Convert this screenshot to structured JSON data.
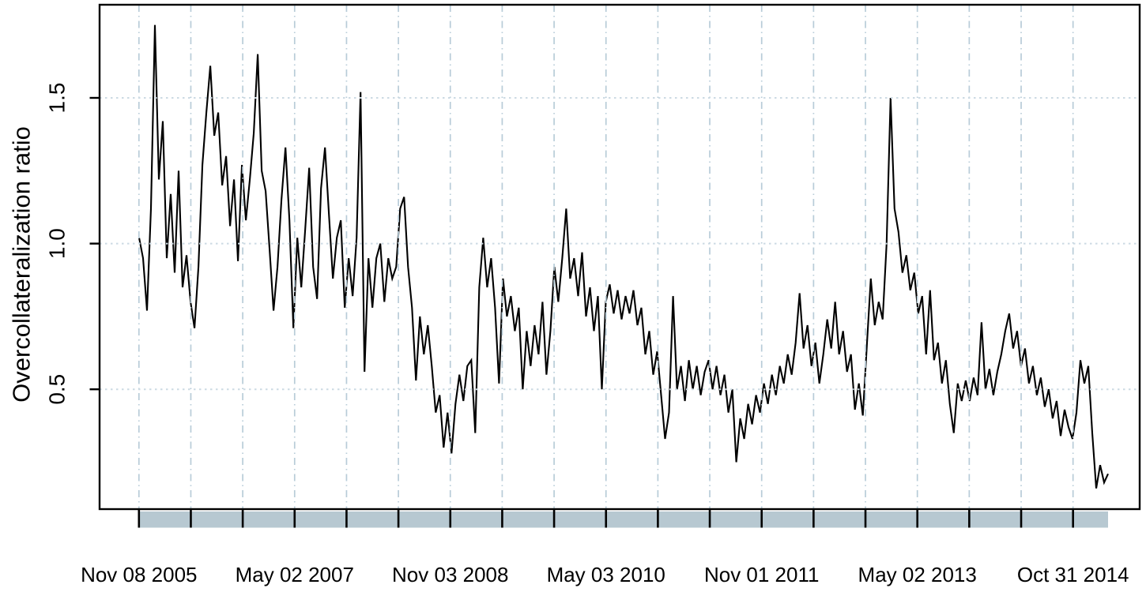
{
  "figure": {
    "kind": "r-plot-screenshot",
    "background": "#ffffff"
  },
  "chart_data": {
    "type": "line",
    "title": "",
    "xlabel": "",
    "ylabel": "Overcollateralization ratio",
    "series_name": "Overcollateralization ratio",
    "x_start_date": "2005-11-08",
    "x_end_date": "2015-03-07",
    "interval_days": 13.9,
    "ylim": [
      0.09,
      1.82
    ],
    "y_ticks": [
      0.5,
      1.0,
      1.5
    ],
    "y_tick_labels": [
      "0.5",
      "1.0",
      "1.5"
    ],
    "x_tick_labels": [
      "Nov 08 2005",
      "May 02 2007",
      "Nov 03 2008",
      "May 03 2010",
      "Nov 01 2011",
      "May 02 2013",
      "Oct 31 2014"
    ],
    "labeled_tick_indices": [
      0,
      3,
      6,
      9,
      12,
      15,
      18
    ],
    "n_x_ticks": 19,
    "x_minor_tick_every_months": 6,
    "grid": true,
    "legend_position": "none",
    "colors": {
      "line": "#000000",
      "v_grid": "#b8ccd8",
      "h_grid": "#ccdae3",
      "axis_band": "#b7c8d1",
      "border": "#000000",
      "text": "#000000",
      "background": "#ffffff"
    },
    "values": [
      1.02,
      0.95,
      0.77,
      1.12,
      1.75,
      1.22,
      1.42,
      0.95,
      1.17,
      0.9,
      1.25,
      0.85,
      0.96,
      0.8,
      0.71,
      0.92,
      1.27,
      1.45,
      1.61,
      1.37,
      1.45,
      1.2,
      1.3,
      1.06,
      1.22,
      0.94,
      1.27,
      1.08,
      1.22,
      1.38,
      1.65,
      1.25,
      1.18,
      0.98,
      0.77,
      0.92,
      1.15,
      1.33,
      1.08,
      0.71,
      1.02,
      0.85,
      1.05,
      1.26,
      0.92,
      0.81,
      1.19,
      1.33,
      1.1,
      0.88,
      1.02,
      1.08,
      0.78,
      0.95,
      0.82,
      1.02,
      1.52,
      0.56,
      0.95,
      0.78,
      0.95,
      1.0,
      0.8,
      0.95,
      0.88,
      0.92,
      1.12,
      1.16,
      0.92,
      0.78,
      0.53,
      0.75,
      0.62,
      0.72,
      0.58,
      0.42,
      0.48,
      0.3,
      0.42,
      0.28,
      0.45,
      0.55,
      0.46,
      0.58,
      0.6,
      0.35,
      0.85,
      1.02,
      0.85,
      0.95,
      0.78,
      0.52,
      0.88,
      0.75,
      0.82,
      0.7,
      0.78,
      0.5,
      0.7,
      0.58,
      0.72,
      0.62,
      0.8,
      0.55,
      0.7,
      0.92,
      0.8,
      0.95,
      1.12,
      0.88,
      0.95,
      0.82,
      0.97,
      0.75,
      0.85,
      0.7,
      0.82,
      0.5,
      0.8,
      0.86,
      0.76,
      0.84,
      0.74,
      0.82,
      0.76,
      0.84,
      0.72,
      0.78,
      0.62,
      0.7,
      0.55,
      0.63,
      0.48,
      0.33,
      0.42,
      0.82,
      0.5,
      0.58,
      0.46,
      0.6,
      0.5,
      0.58,
      0.48,
      0.56,
      0.6,
      0.5,
      0.58,
      0.48,
      0.55,
      0.42,
      0.5,
      0.25,
      0.4,
      0.33,
      0.45,
      0.38,
      0.48,
      0.42,
      0.52,
      0.45,
      0.55,
      0.48,
      0.58,
      0.52,
      0.62,
      0.55,
      0.66,
      0.83,
      0.64,
      0.72,
      0.58,
      0.66,
      0.52,
      0.62,
      0.74,
      0.64,
      0.8,
      0.62,
      0.7,
      0.56,
      0.62,
      0.43,
      0.52,
      0.41,
      0.65,
      0.88,
      0.72,
      0.8,
      0.74,
      1.0,
      1.5,
      1.12,
      1.04,
      0.9,
      0.96,
      0.84,
      0.9,
      0.76,
      0.82,
      0.62,
      0.84,
      0.6,
      0.66,
      0.52,
      0.6,
      0.45,
      0.35,
      0.52,
      0.46,
      0.53,
      0.46,
      0.54,
      0.48,
      0.73,
      0.5,
      0.57,
      0.48,
      0.56,
      0.62,
      0.7,
      0.76,
      0.64,
      0.7,
      0.58,
      0.64,
      0.52,
      0.58,
      0.48,
      0.54,
      0.44,
      0.5,
      0.4,
      0.46,
      0.34,
      0.43,
      0.37,
      0.33,
      0.42,
      0.6,
      0.52,
      0.58,
      0.35,
      0.16,
      0.24,
      0.18,
      0.21
    ]
  }
}
